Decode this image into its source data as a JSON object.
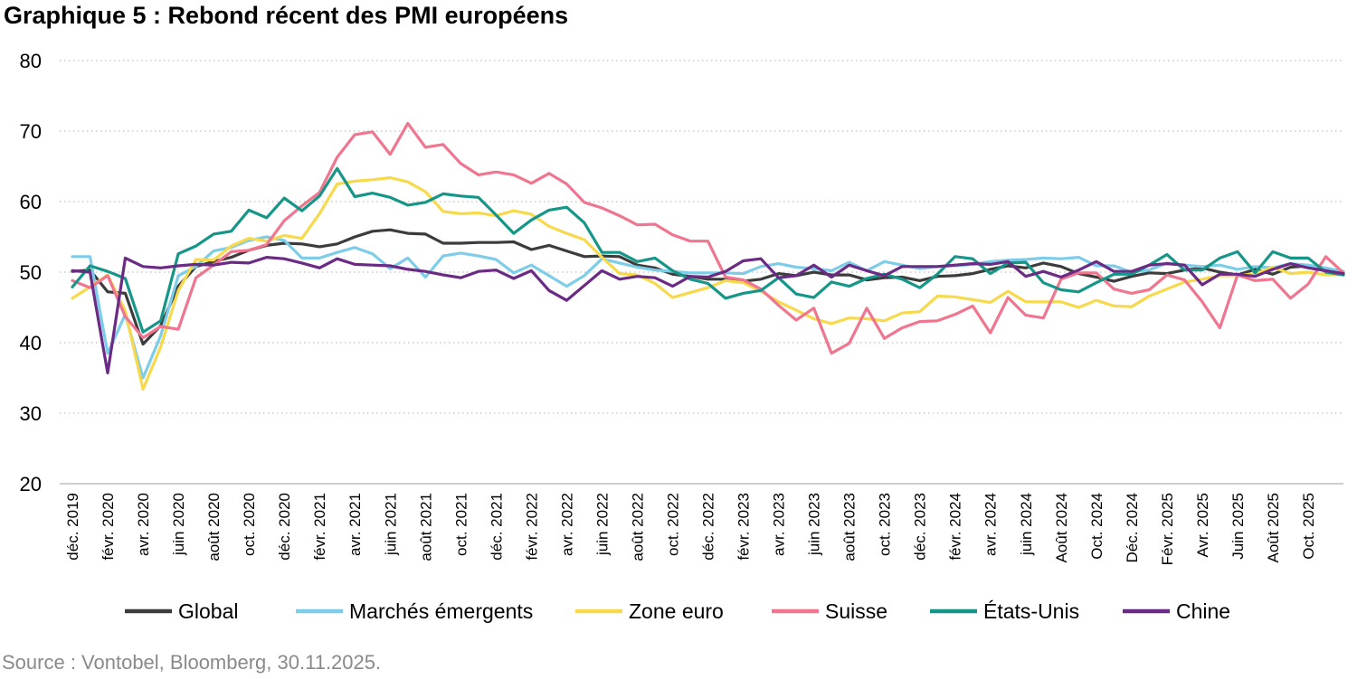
{
  "chart_data": {
    "type": "line",
    "title": "Graphique 5 : Rebond récent des PMI européens",
    "source": "Source : Vontobel, Bloomberg, 30.11.2025.",
    "ylim": [
      20,
      80
    ],
    "yticks": [
      20,
      30,
      40,
      50,
      60,
      70,
      80
    ],
    "grid": "horizontal-dotted",
    "legend_position": "bottom",
    "x_labels": [
      "déc. 2019",
      "févr. 2020",
      "avr. 2020",
      "juin 2020",
      "août 2020",
      "oct. 2020",
      "déc. 2020",
      "févr. 2021",
      "avr. 2021",
      "juin 2021",
      "août 2021",
      "oct. 2021",
      "déc. 2021",
      "févr. 2022",
      "avr. 2022",
      "juin 2022",
      "août 2022",
      "oct. 2022",
      "déc. 2022",
      "févr. 2023",
      "avr. 2023",
      "juin 2023",
      "août 2023",
      "oct. 2023",
      "déc. 2023",
      "févr. 2024",
      "avr. 2024",
      "juin 2024",
      "Août 2024",
      "Oct. 2024",
      "Déc. 2024",
      "Févr. 2025",
      "Avr. 2025",
      "Juin 2025",
      "Août 2025",
      "Oct. 2025"
    ],
    "series": [
      {
        "name": "Global",
        "color": "#3c3c3c",
        "values": [
          50.1,
          50.3,
          47.2,
          47.0,
          39.8,
          42.4,
          48.0,
          50.8,
          51.5,
          52.1,
          53.1,
          53.8,
          54.1,
          54.0,
          53.6,
          54.0,
          55.0,
          55.8,
          56.0,
          55.5,
          55.4,
          54.1,
          54.1,
          54.2,
          54.2,
          54.3,
          53.2,
          53.8,
          53.0,
          52.2,
          52.3,
          52.2,
          51.0,
          50.6,
          49.7,
          49.4,
          49.0,
          49.0,
          48.7,
          49.0,
          49.8,
          49.5,
          50.0,
          49.6,
          49.6,
          48.9,
          49.2,
          49.3,
          48.8,
          49.4,
          49.5,
          49.8,
          50.4,
          50.9,
          50.6,
          51.3,
          50.8,
          49.8,
          49.3,
          48.7,
          49.4,
          49.9,
          49.8,
          50.3,
          50.6,
          50.0,
          49.6,
          50.4,
          49.7,
          50.7,
          50.9,
          50.4,
          49.8
        ]
      },
      {
        "name": "Marchés émergents",
        "color": "#7dcde8",
        "values": [
          52.2,
          52.2,
          38.5,
          44.0,
          35.0,
          41.0,
          49.5,
          50.8,
          53.0,
          53.5,
          54.5,
          55.0,
          54.5,
          52.0,
          52.0,
          52.8,
          53.5,
          52.6,
          50.5,
          52.0,
          49.3,
          52.3,
          52.7,
          52.3,
          51.8,
          49.9,
          51.0,
          49.5,
          48.0,
          49.5,
          51.9,
          51.3,
          50.7,
          50.3,
          50.1,
          49.9,
          49.9,
          49.9,
          49.8,
          50.8,
          51.2,
          50.7,
          50.5,
          50.2,
          51.4,
          50.2,
          51.5,
          51.0,
          50.5,
          50.8,
          50.9,
          51.1,
          51.5,
          51.7,
          51.8,
          52.0,
          51.9,
          52.1,
          50.9,
          50.9,
          50.0,
          50.3,
          51.3,
          51.0,
          50.8,
          51.0,
          50.4,
          50.8,
          50.6,
          51.2,
          51.0,
          50.6,
          50.1
        ]
      },
      {
        "name": "Zone euro",
        "color": "#f7d94c",
        "values": [
          46.3,
          47.9,
          49.6,
          44.5,
          33.4,
          39.4,
          47.4,
          51.8,
          51.7,
          53.7,
          54.8,
          54.4,
          55.2,
          54.8,
          58.3,
          62.5,
          62.9,
          63.1,
          63.4,
          62.8,
          61.4,
          58.6,
          58.3,
          58.4,
          58.0,
          58.7,
          58.2,
          56.5,
          55.5,
          54.6,
          52.1,
          49.8,
          49.6,
          48.4,
          46.4,
          47.1,
          47.8,
          48.8,
          48.5,
          47.3,
          45.8,
          44.6,
          43.4,
          42.7,
          43.5,
          43.4,
          43.1,
          44.2,
          44.4,
          46.6,
          46.5,
          46.1,
          45.7,
          47.3,
          45.8,
          45.8,
          45.8,
          45.0,
          46.0,
          45.2,
          45.1,
          46.6,
          47.6,
          48.6,
          49.0,
          49.5,
          49.5,
          49.8,
          50.7,
          49.8,
          50.0,
          49.6,
          49.7
        ]
      },
      {
        "name": "Suisse",
        "color": "#f0758f",
        "values": [
          48.8,
          47.8,
          49.5,
          43.7,
          40.7,
          42.3,
          41.9,
          49.2,
          51.0,
          52.9,
          53.1,
          53.9,
          57.3,
          59.4,
          61.3,
          66.3,
          69.5,
          69.9,
          66.7,
          71.1,
          67.7,
          68.1,
          65.4,
          63.8,
          64.2,
          63.8,
          62.6,
          64.0,
          62.5,
          59.9,
          59.1,
          58.0,
          56.7,
          56.8,
          55.3,
          54.4,
          54.4,
          49.3,
          48.9,
          47.6,
          45.3,
          43.2,
          44.9,
          38.5,
          39.9,
          44.9,
          40.6,
          42.1,
          43.0,
          43.1,
          44.0,
          45.2,
          41.4,
          46.4,
          43.9,
          43.5,
          49.0,
          49.9,
          49.9,
          47.6,
          47.0,
          47.5,
          49.6,
          48.9,
          45.8,
          42.1,
          49.6,
          48.8,
          49.0,
          46.3,
          48.3,
          52.2,
          49.9
        ]
      },
      {
        "name": "États-Unis",
        "color": "#159688",
        "values": [
          47.9,
          50.9,
          50.1,
          49.1,
          41.5,
          43.1,
          52.6,
          53.7,
          55.4,
          55.8,
          58.8,
          57.7,
          60.5,
          58.7,
          60.8,
          64.7,
          60.7,
          61.2,
          60.6,
          59.5,
          59.9,
          61.1,
          60.8,
          60.6,
          58.1,
          55.5,
          57.4,
          58.8,
          59.2,
          57.0,
          52.8,
          52.8,
          51.5,
          52.0,
          50.2,
          49.0,
          48.4,
          46.3,
          47.0,
          47.4,
          49.2,
          46.9,
          46.4,
          48.6,
          48.0,
          49.1,
          49.7,
          49.0,
          47.8,
          49.7,
          52.2,
          51.9,
          49.8,
          51.3,
          51.4,
          48.5,
          47.5,
          47.2,
          48.5,
          49.7,
          49.7,
          51.0,
          52.5,
          50.3,
          50.3,
          52.0,
          52.9,
          49.9,
          52.9,
          52.0,
          52.0,
          50.0,
          49.6
        ]
      },
      {
        "name": "Chine",
        "color": "#6b2a84",
        "values": [
          50.2,
          50.0,
          35.7,
          52.0,
          50.8,
          50.6,
          50.9,
          51.1,
          51.0,
          51.4,
          51.3,
          52.1,
          51.9,
          51.3,
          50.6,
          51.9,
          51.1,
          51.0,
          50.9,
          50.4,
          50.1,
          49.6,
          49.2,
          50.1,
          50.3,
          49.1,
          50.2,
          47.4,
          46.0,
          48.1,
          50.2,
          49.0,
          49.4,
          49.2,
          48.0,
          49.4,
          49.3,
          50.1,
          51.6,
          51.9,
          49.2,
          49.5,
          51.0,
          49.3,
          51.0,
          50.2,
          49.5,
          50.8,
          50.8,
          50.8,
          51.0,
          51.2,
          51.1,
          51.5,
          49.4,
          50.1,
          49.3,
          50.3,
          51.5,
          50.1,
          50.1,
          51.0,
          51.2,
          51.0,
          48.2,
          49.7,
          49.7,
          49.4,
          50.4,
          51.2,
          50.6,
          50.2,
          49.8
        ]
      }
    ]
  }
}
